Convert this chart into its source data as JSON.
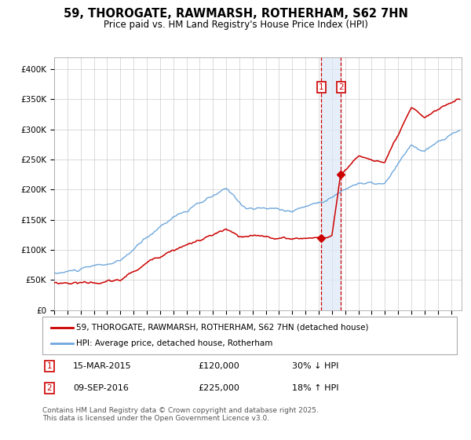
{
  "title": "59, THOROGATE, RAWMARSH, ROTHERHAM, S62 7HN",
  "subtitle": "Price paid vs. HM Land Registry's House Price Index (HPI)",
  "ylim": [
    0,
    420000
  ],
  "yticks": [
    0,
    50000,
    100000,
    150000,
    200000,
    250000,
    300000,
    350000,
    400000
  ],
  "ytick_labels": [
    "£0",
    "£50K",
    "£100K",
    "£150K",
    "£200K",
    "£250K",
    "£300K",
    "£350K",
    "£400K"
  ],
  "xlim_start": 1995.0,
  "xlim_end": 2025.8,
  "sale1_date": 2015.2,
  "sale1_price": 120000,
  "sale2_date": 2016.69,
  "sale2_price": 225000,
  "hpi_color": "#6fa8dc",
  "price_color": "#cc0000",
  "shade_color": "#dce9f7",
  "legend_label_price": "59, THOROGATE, RAWMARSH, ROTHERHAM, S62 7HN (detached house)",
  "legend_label_hpi": "HPI: Average price, detached house, Rotherham",
  "footnote": "Contains HM Land Registry data © Crown copyright and database right 2025.\nThis data is licensed under the Open Government Licence v3.0.",
  "title_fontsize": 10.5,
  "subtitle_fontsize": 8.5,
  "tick_fontsize": 7.5,
  "legend_fontsize": 7.5,
  "footnote_fontsize": 6.5
}
